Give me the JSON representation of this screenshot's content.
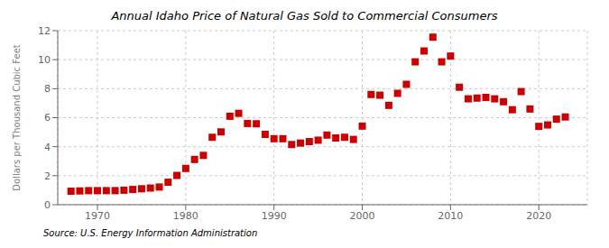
{
  "chart_data": {
    "type": "scatter",
    "title": "Annual Idaho Price of Natural Gas Sold to Commercial Consumers",
    "y_label": "Dollars per Thousand Cubic Feet",
    "annotations": [
      "Source: U.S. Energy Information Administration"
    ],
    "x": [
      1967,
      1968,
      1969,
      1970,
      1971,
      1972,
      1973,
      1974,
      1975,
      1976,
      1977,
      1978,
      1979,
      1980,
      1981,
      1982,
      1983,
      1984,
      1985,
      1986,
      1987,
      1988,
      1989,
      1990,
      1991,
      1992,
      1993,
      1994,
      1995,
      1996,
      1997,
      1998,
      1999,
      2000,
      2001,
      2002,
      2003,
      2004,
      2005,
      2006,
      2007,
      2008,
      2009,
      2010,
      2011,
      2012,
      2013,
      2014,
      2015,
      2016,
      2017,
      2018,
      2019,
      2020,
      2021,
      2022,
      2023
    ],
    "values": [
      0.93,
      0.95,
      0.97,
      0.97,
      0.97,
      0.97,
      1.0,
      1.05,
      1.1,
      1.15,
      1.22,
      1.55,
      2.02,
      2.5,
      3.12,
      3.4,
      4.65,
      5.02,
      6.1,
      6.3,
      5.6,
      5.58,
      4.85,
      4.55,
      4.55,
      4.15,
      4.25,
      4.35,
      4.45,
      4.8,
      4.6,
      4.65,
      4.5,
      5.42,
      7.6,
      7.55,
      6.85,
      7.68,
      8.3,
      9.85,
      10.6,
      11.55,
      9.85,
      10.25,
      8.1,
      7.3,
      7.35,
      7.4,
      7.3,
      7.1,
      6.55,
      7.8,
      6.6,
      5.4,
      5.5,
      5.9,
      6.05
    ],
    "color": "#cc0000",
    "marker": "square",
    "xlim": [
      1965.5,
      2025.5
    ],
    "ylim": [
      0,
      12
    ],
    "xticks": [
      1970,
      1980,
      1990,
      2000,
      2010,
      2020
    ],
    "yticks": [
      0,
      2,
      4,
      6,
      8,
      10,
      12
    ],
    "grid": true
  }
}
